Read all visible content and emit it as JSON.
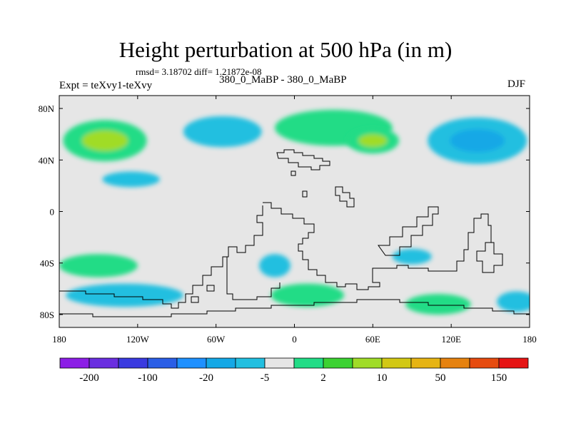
{
  "header": {
    "title": "Height perturbation at 500 hPa (in m)",
    "stats": "rmsd= 3.18702 diff= 1.21872e-08",
    "left_label": "Expt = teXvy1-teXvy",
    "center_label": "380_0_MaBP - 380_0_MaBP",
    "right_label": "DJF"
  },
  "chart_data": {
    "type": "heatmap",
    "subtype": "filled-contour-map",
    "title": "Height perturbation at 500 hPa (in m)",
    "units": "m",
    "xlabel": "",
    "ylabel": "",
    "xlim": [
      -180,
      180
    ],
    "ylim": [
      -90,
      90
    ],
    "x_ticks": [
      {
        "value": -180,
        "label": "180"
      },
      {
        "value": -120,
        "label": "120W"
      },
      {
        "value": -60,
        "label": "60W"
      },
      {
        "value": 0,
        "label": "0"
      },
      {
        "value": 60,
        "label": "60E"
      },
      {
        "value": 120,
        "label": "120E"
      },
      {
        "value": 180,
        "label": "180"
      }
    ],
    "y_ticks": [
      {
        "value": 80,
        "label": "80N"
      },
      {
        "value": 40,
        "label": "40N"
      },
      {
        "value": 0,
        "label": "0"
      },
      {
        "value": -40,
        "label": "40S"
      },
      {
        "value": -80,
        "label": "80S"
      }
    ],
    "colorbar": {
      "colors": [
        "#8c1ee6",
        "#6a2ee0",
        "#3a3ae0",
        "#2a5ee6",
        "#1e90ff",
        "#14a8e6",
        "#22bfe0",
        "#e6e6e6",
        "#22dc86",
        "#3cd232",
        "#a0dc28",
        "#d2c814",
        "#e6b414",
        "#e6820f",
        "#e64b0f",
        "#e61414"
      ],
      "labels": [
        {
          "value": -200,
          "label": "-200",
          "after_box": 1
        },
        {
          "value": -100,
          "label": "-100",
          "after_box": 3
        },
        {
          "value": -20,
          "label": "-20",
          "after_box": 5
        },
        {
          "value": -5,
          "label": "-5",
          "after_box": 7
        },
        {
          "value": 2,
          "label": "2",
          "after_box": 9
        },
        {
          "value": 10,
          "label": "10",
          "after_box": 11
        },
        {
          "value": 50,
          "label": "50",
          "after_box": 13
        },
        {
          "value": 150,
          "label": "150",
          "after_box": 15
        }
      ]
    },
    "anomaly_features": [
      {
        "name": "north-pacific-positive",
        "lon": -145,
        "lat": 55,
        "dlon": 32,
        "dlat": 16,
        "value": 12
      },
      {
        "name": "north-atlantic-negative",
        "lon": -55,
        "lat": 62,
        "dlon": 30,
        "dlat": 12,
        "value": -7
      },
      {
        "name": "eurasia-positive",
        "lon": 30,
        "lat": 65,
        "dlon": 45,
        "dlat": 14,
        "value": 8
      },
      {
        "name": "east-europe-positive-core",
        "lon": 60,
        "lat": 55,
        "dlon": 20,
        "dlat": 10,
        "value": 12
      },
      {
        "name": "east-asia-negative",
        "lon": 140,
        "lat": 55,
        "dlon": 38,
        "dlat": 18,
        "value": -15
      },
      {
        "name": "subtropical-pacific-negative",
        "lon": -125,
        "lat": 25,
        "dlon": 22,
        "dlat": 6,
        "value": -6
      },
      {
        "name": "south-pacific-positive",
        "lon": -150,
        "lat": -42,
        "dlon": 30,
        "dlat": 9,
        "value": 5
      },
      {
        "name": "southern-ocean-negative-west",
        "lon": -130,
        "lat": -65,
        "dlon": 45,
        "dlat": 9,
        "value": -8
      },
      {
        "name": "south-atlantic-negative",
        "lon": -15,
        "lat": -42,
        "dlon": 12,
        "dlat": 9,
        "value": -6
      },
      {
        "name": "southern-ocean-positive-atlantic",
        "lon": 10,
        "lat": -65,
        "dlon": 28,
        "dlat": 9,
        "value": 5
      },
      {
        "name": "indian-ocean-negative",
        "lon": 90,
        "lat": -35,
        "dlon": 15,
        "dlat": 6,
        "value": -6
      },
      {
        "name": "southern-ocean-positive-indian",
        "lon": 110,
        "lat": -72,
        "dlon": 25,
        "dlat": 8,
        "value": 6
      },
      {
        "name": "southeast-pacific-negative",
        "lon": 170,
        "lat": -70,
        "dlon": 15,
        "dlat": 8,
        "value": -8
      }
    ]
  }
}
